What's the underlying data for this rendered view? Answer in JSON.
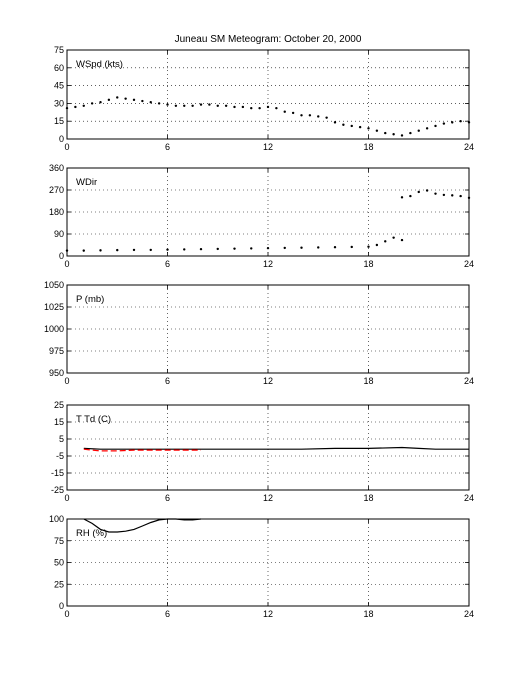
{
  "chart_data": {
    "title": "Juneau SM Meteogram:    October 20, 2000",
    "type": "line",
    "grid": true,
    "x_ticks": [
      0,
      6,
      12,
      18,
      24
    ],
    "xlim": [
      0,
      24
    ],
    "colors": {
      "primary": "#000000",
      "secondary": "#ff0000"
    },
    "panels": [
      {
        "label": "WSpd (kts)",
        "ylim": [
          0,
          75
        ],
        "y_ticks": [
          0,
          15,
          30,
          45,
          60,
          75
        ],
        "series": [
          {
            "style": "dots",
            "color": "#000000",
            "x": [
              0,
              0.5,
              1,
              1.5,
              2,
              2.5,
              3,
              3.5,
              4,
              4.5,
              5,
              5.5,
              6,
              6.5,
              7,
              7.5,
              8,
              8.5,
              9,
              9.5,
              10,
              10.5,
              11,
              11.5,
              12,
              12.5,
              13,
              13.5,
              14,
              14.5,
              15,
              15.5,
              16,
              16.5,
              17,
              17.5,
              18,
              18.5,
              19,
              19.5,
              20,
              20.5,
              21,
              21.5,
              22,
              22.5,
              23,
              23.5,
              24
            ],
            "y": [
              26,
              27,
              28,
              30,
              31,
              33,
              35,
              34,
              33,
              32,
              31,
              30,
              29,
              28,
              28,
              28,
              29,
              29,
              28,
              28,
              27,
              27,
              26,
              26,
              27,
              26,
              23,
              22,
              20,
              20,
              19,
              18,
              14,
              12,
              11,
              10,
              9,
              7,
              5,
              4,
              3,
              5,
              7,
              9,
              11,
              13,
              14,
              15,
              14
            ]
          }
        ]
      },
      {
        "label": "WDir",
        "ylim": [
          0,
          360
        ],
        "y_ticks": [
          0,
          90,
          180,
          270,
          360
        ],
        "series": [
          {
            "style": "dots",
            "color": "#000000",
            "x": [
              0,
              1,
              2,
              3,
              4,
              5,
              6,
              7,
              8,
              9,
              10,
              11,
              12,
              13,
              14,
              15,
              16,
              17,
              18,
              18.5,
              19,
              19.5,
              20
            ],
            "y": [
              22,
              22,
              23,
              24,
              25,
              25,
              26,
              27,
              28,
              29,
              30,
              31,
              32,
              33,
              34,
              35,
              36,
              37,
              38,
              45,
              60,
              75,
              65
            ]
          },
          {
            "style": "dots",
            "color": "#000000",
            "x": [
              20,
              20.5,
              21,
              21.5,
              22,
              22.5,
              23,
              23.5,
              24
            ],
            "y": [
              240,
              245,
              262,
              268,
              255,
              250,
              248,
              245,
              238
            ]
          }
        ]
      },
      {
        "label": "P (mb)",
        "ylim": [
          950,
          1050
        ],
        "y_ticks": [
          950,
          975,
          1000,
          1025,
          1050
        ],
        "series": []
      },
      {
        "label": "T Td (C)",
        "ylim": [
          -25,
          25
        ],
        "y_ticks": [
          -25,
          -15,
          -5,
          5,
          15,
          25
        ],
        "series": [
          {
            "style": "line",
            "color": "#000000",
            "x": [
              1,
              2,
              4,
              6,
              8,
              10,
              12,
              14,
              16,
              18,
              20,
              21,
              22,
              24
            ],
            "y": [
              -0.5,
              -1,
              -1,
              -1,
              -1,
              -1,
              -1,
              -1,
              -0.5,
              -0.5,
              0,
              -0.5,
              -1,
              -1
            ]
          },
          {
            "style": "dashed",
            "color": "#ff0000",
            "x": [
              1,
              1.5,
              2,
              3,
              4,
              5,
              6,
              7,
              8
            ],
            "y": [
              -1,
              -1.5,
              -2,
              -2,
              -1.5,
              -1.5,
              -1.5,
              -1.5,
              -1.5
            ]
          }
        ]
      },
      {
        "label": "RH (%)",
        "ylim": [
          0,
          100
        ],
        "y_ticks": [
          0,
          25,
          50,
          75,
          100
        ],
        "series": [
          {
            "style": "line",
            "color": "#000000",
            "x": [
              1,
              1.5,
              2,
              2.5,
              3,
              3.5,
              4,
              4.5,
              5,
              5.5,
              6,
              6.5,
              7,
              7.5,
              8
            ],
            "y": [
              100,
              95,
              88,
              85,
              85,
              86,
              88,
              92,
              96,
              99,
              100,
              100,
              99,
              99,
              100
            ]
          }
        ]
      }
    ]
  }
}
